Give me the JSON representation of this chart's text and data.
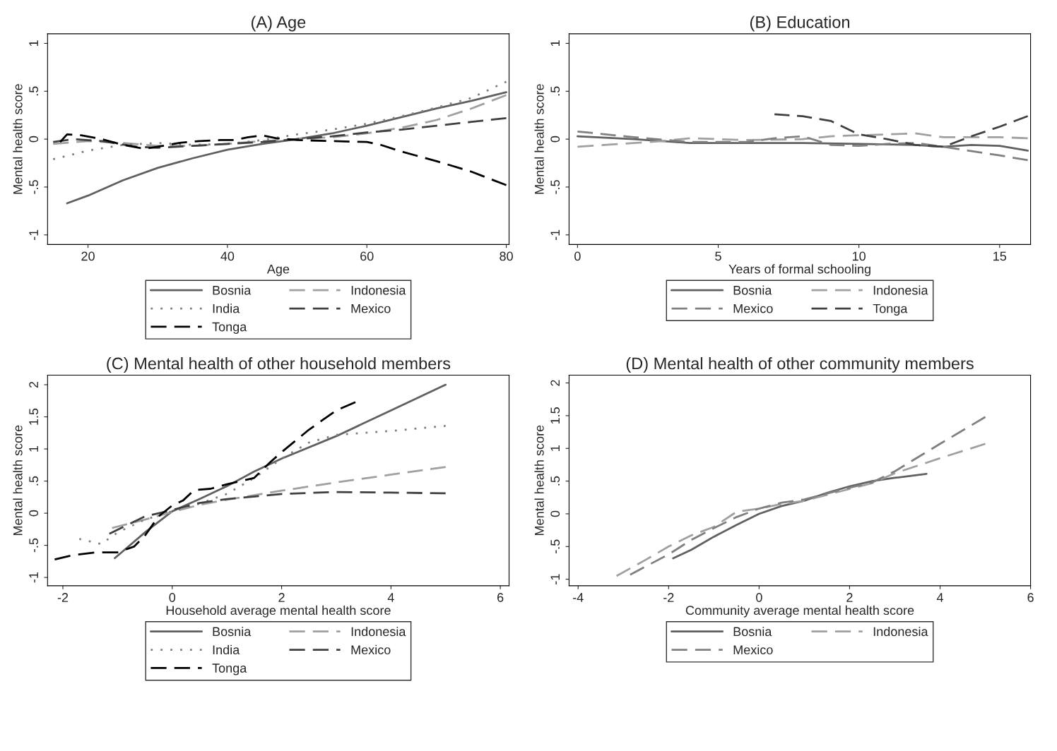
{
  "chart_data": [
    {
      "type": "line",
      "title": "(A) Age",
      "xlabel": "Age",
      "ylabel": "Mental health score",
      "xlim": [
        14.2,
        80.4
      ],
      "ylim": [
        -1.1,
        1.1
      ],
      "xticks": [
        20,
        40,
        60,
        80
      ],
      "yticks": [
        {
          "value": -1,
          "label": "-1"
        },
        {
          "value": -0.5,
          "label": "-.5"
        },
        0,
        {
          "value": 0.5,
          "label": ".5"
        },
        1
      ],
      "grid": false,
      "legend": "bottom",
      "marker": "none",
      "series": [
        {
          "name": "Bosnia",
          "color": "#606060",
          "line_style": "solid",
          "x": [
            17,
            20,
            25,
            30,
            35,
            40,
            45,
            50,
            55,
            60,
            65,
            70,
            75,
            80
          ],
          "values": [
            -0.67,
            -0.59,
            -0.43,
            -0.3,
            -0.2,
            -0.11,
            -0.05,
            0.0,
            0.06,
            0.14,
            0.23,
            0.32,
            0.4,
            0.49
          ]
        },
        {
          "name": "Indonesia",
          "color": "#a0a0a0",
          "line_style": "dashed",
          "x": [
            15,
            20,
            25,
            30,
            35,
            40,
            45,
            50,
            55,
            60,
            65,
            70,
            75,
            80
          ],
          "values": [
            -0.05,
            -0.02,
            -0.04,
            -0.07,
            -0.07,
            -0.05,
            -0.02,
            0.0,
            0.02,
            0.06,
            0.12,
            0.2,
            0.32,
            0.46
          ]
        },
        {
          "name": "India",
          "color": "#808080",
          "line_style": "dotted",
          "x": [
            15,
            20,
            25,
            30,
            35,
            40,
            45,
            50,
            55,
            60,
            65,
            70,
            75,
            80
          ],
          "values": [
            -0.21,
            -0.12,
            -0.06,
            -0.04,
            -0.06,
            -0.05,
            -0.01,
            0.05,
            0.1,
            0.16,
            0.24,
            0.33,
            0.43,
            0.6
          ]
        },
        {
          "name": "Mexico",
          "color": "#404040",
          "line_style": "dashed",
          "x": [
            15,
            18,
            22,
            27,
            30,
            35,
            40,
            45,
            50,
            55,
            60,
            65,
            70,
            75,
            80
          ],
          "values": [
            -0.03,
            0.0,
            -0.02,
            -0.08,
            -0.09,
            -0.07,
            -0.05,
            -0.03,
            0.0,
            0.03,
            0.07,
            0.1,
            0.14,
            0.18,
            0.22
          ]
        },
        {
          "name": "Tonga",
          "color": "#000000",
          "line_style": "dashed",
          "x": [
            16,
            17,
            19,
            22,
            25,
            28,
            30,
            33,
            36,
            39,
            41,
            43,
            45,
            47,
            50,
            55,
            60,
            62,
            65,
            70,
            75,
            80
          ],
          "values": [
            -0.03,
            0.05,
            0.04,
            0.0,
            -0.06,
            -0.1,
            -0.08,
            -0.04,
            -0.02,
            -0.01,
            -0.01,
            0.02,
            0.04,
            0.01,
            -0.01,
            -0.02,
            -0.03,
            -0.06,
            -0.13,
            -0.23,
            -0.34,
            -0.48
          ]
        }
      ]
    },
    {
      "type": "line",
      "title": "(B) Education",
      "xlabel": "Years of formal schooling",
      "ylabel": "Mental health score",
      "xlim": [
        -0.3,
        16.1
      ],
      "ylim": [
        -1.1,
        1.1
      ],
      "xticks": [
        0,
        5,
        10,
        15
      ],
      "yticks": [
        {
          "value": -1,
          "label": "-1"
        },
        {
          "value": -0.5,
          "label": "-.5"
        },
        0,
        {
          "value": 0.5,
          "label": ".5"
        },
        1
      ],
      "grid": false,
      "legend": "bottom",
      "marker": "none",
      "series": [
        {
          "name": "Bosnia",
          "color": "#606060",
          "line_style": "solid",
          "x": [
            0,
            2,
            4,
            6,
            8,
            10,
            12,
            13,
            14,
            15,
            16
          ],
          "values": [
            0.03,
            0.0,
            -0.04,
            -0.04,
            -0.04,
            -0.05,
            -0.06,
            -0.08,
            -0.06,
            -0.07,
            -0.12
          ]
        },
        {
          "name": "Indonesia",
          "color": "#a0a0a0",
          "line_style": "dashed",
          "x": [
            0,
            3,
            4,
            6,
            8,
            9,
            10,
            11,
            12,
            13,
            14,
            15,
            16
          ],
          "values": [
            -0.08,
            -0.02,
            0.01,
            -0.01,
            0.0,
            0.03,
            0.04,
            0.05,
            0.06,
            0.02,
            0.02,
            0.02,
            0.01
          ]
        },
        {
          "name": "Mexico",
          "color": "#808080",
          "line_style": "dashed",
          "x": [
            0,
            2,
            4,
            6,
            7,
            8,
            9,
            10,
            11,
            12,
            13,
            15,
            16
          ],
          "values": [
            0.08,
            0.02,
            -0.03,
            -0.03,
            0.01,
            0.03,
            -0.06,
            -0.07,
            -0.05,
            -0.04,
            -0.08,
            -0.17,
            -0.22
          ]
        },
        {
          "name": "Tonga",
          "color": "#404040",
          "line_style": "dashed",
          "x": [
            7,
            8,
            9,
            10,
            11,
            12,
            13,
            14,
            15,
            16
          ],
          "values": [
            0.26,
            0.24,
            0.19,
            0.05,
            0.0,
            -0.06,
            -0.08,
            0.03,
            0.13,
            0.24
          ]
        }
      ]
    },
    {
      "type": "line",
      "title": "(C) Mental health of other household members",
      "xlabel": "Household average mental health score",
      "ylabel": "Mental health score",
      "xlim": [
        -2.28,
        6.16
      ],
      "ylim": [
        -1.13,
        2.15
      ],
      "xticks": [
        -2,
        0,
        2,
        4,
        6
      ],
      "yticks": [
        {
          "value": -1,
          "label": "-1"
        },
        {
          "value": -0.5,
          "label": "-.5"
        },
        0,
        {
          "value": 0.5,
          "label": ".5"
        },
        1,
        1.5,
        2
      ],
      "grid": false,
      "legend": "bottom",
      "marker": "none",
      "series": [
        {
          "name": "Bosnia",
          "color": "#606060",
          "line_style": "solid",
          "x": [
            -1.05,
            -0.5,
            0,
            0.5,
            1,
            1.5,
            2,
            3,
            4,
            5
          ],
          "values": [
            -0.7,
            -0.3,
            0.03,
            0.22,
            0.42,
            0.65,
            0.85,
            1.2,
            1.6,
            2.0
          ]
        },
        {
          "name": "Indonesia",
          "color": "#a0a0a0",
          "line_style": "dashed",
          "x": [
            -1.1,
            -0.5,
            0,
            0.5,
            1,
            2,
            3,
            4,
            5
          ],
          "values": [
            -0.23,
            -0.1,
            0.02,
            0.13,
            0.21,
            0.35,
            0.48,
            0.6,
            0.72
          ]
        },
        {
          "name": "India",
          "color": "#808080",
          "line_style": "dotted",
          "x": [
            -1.7,
            -1.3,
            -1.0,
            -0.5,
            0,
            0.5,
            1,
            1.5,
            2,
            2.5,
            3,
            4,
            5
          ],
          "values": [
            -0.4,
            -0.48,
            -0.3,
            -0.1,
            0.03,
            0.15,
            0.3,
            0.55,
            0.85,
            1.1,
            1.22,
            1.28,
            1.36
          ]
        },
        {
          "name": "Mexico",
          "color": "#404040",
          "line_style": "dashed",
          "x": [
            -1.15,
            -0.5,
            0,
            0.5,
            1,
            2,
            3,
            4,
            5
          ],
          "values": [
            -0.32,
            -0.05,
            0.05,
            0.16,
            0.22,
            0.3,
            0.33,
            0.32,
            0.31
          ]
        },
        {
          "name": "Tonga",
          "color": "#000000",
          "line_style": "dashed",
          "x": [
            -2.15,
            -1.8,
            -1.4,
            -1.0,
            -0.7,
            -0.5,
            -0.25,
            0,
            0.2,
            0.4,
            0.7,
            1,
            1.5,
            1.8,
            2.0,
            2.5,
            3,
            3.35
          ],
          "values": [
            -0.72,
            -0.65,
            -0.61,
            -0.61,
            -0.52,
            -0.35,
            -0.05,
            0.12,
            0.2,
            0.36,
            0.38,
            0.45,
            0.55,
            0.8,
            0.95,
            1.3,
            1.6,
            1.73
          ]
        }
      ]
    },
    {
      "type": "line",
      "title": "(D) Mental health of other community members",
      "xlabel": "Community average mental health score",
      "ylabel": "Mental health score",
      "xlim": [
        -4.2,
        6.0
      ],
      "ylim": [
        -1.1,
        2.12
      ],
      "xticks": [
        -4,
        -2,
        0,
        2,
        4,
        6
      ],
      "yticks": [
        {
          "value": -1,
          "label": "-1"
        },
        {
          "value": -0.5,
          "label": "-.5"
        },
        0,
        {
          "value": 0.5,
          "label": ".5"
        },
        1,
        1.5,
        2
      ],
      "grid": false,
      "legend": "bottom",
      "marker": "none",
      "series": [
        {
          "name": "Bosnia",
          "color": "#606060",
          "line_style": "solid",
          "x": [
            -1.9,
            -1.5,
            -1,
            -0.5,
            0,
            0.5,
            1,
            1.5,
            2,
            2.5,
            3,
            3.7
          ],
          "values": [
            -0.68,
            -0.55,
            -0.35,
            -0.17,
            0.0,
            0.12,
            0.2,
            0.32,
            0.42,
            0.5,
            0.55,
            0.61
          ]
        },
        {
          "name": "Indonesia",
          "color": "#a0a0a0",
          "line_style": "dashed",
          "x": [
            -3.15,
            -2.5,
            -2,
            -1.5,
            -1,
            -0.5,
            0,
            0.5,
            1,
            2,
            2.5,
            3,
            4,
            5
          ],
          "values": [
            -0.95,
            -0.7,
            -0.5,
            -0.33,
            -0.2,
            0.03,
            0.08,
            0.15,
            0.2,
            0.38,
            0.47,
            0.62,
            0.85,
            1.07
          ]
        },
        {
          "name": "Mexico",
          "color": "#808080",
          "line_style": "dashed",
          "x": [
            -2.85,
            -2,
            -1.5,
            -1,
            -0.5,
            0,
            0.5,
            1,
            2,
            2.5,
            3,
            4,
            5
          ],
          "values": [
            -0.93,
            -0.62,
            -0.4,
            -0.22,
            -0.05,
            0.08,
            0.17,
            0.22,
            0.4,
            0.48,
            0.65,
            1.07,
            1.48
          ]
        }
      ]
    }
  ]
}
